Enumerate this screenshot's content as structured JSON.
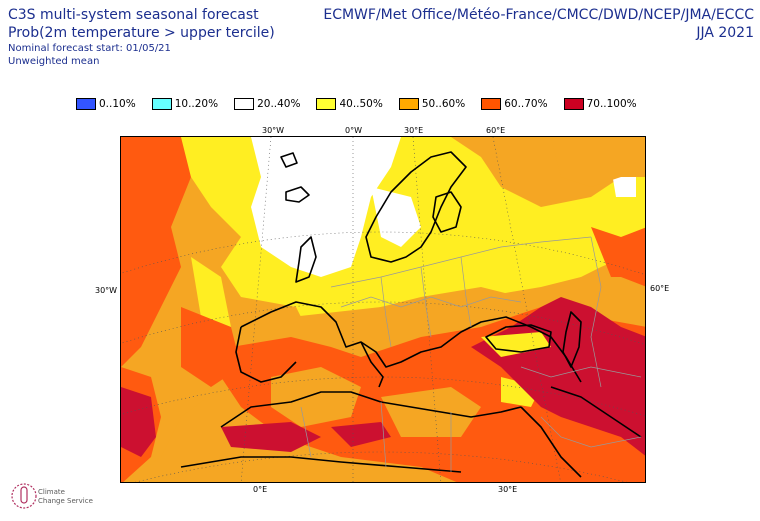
{
  "header": {
    "title": "C3S multi-system seasonal forecast",
    "subtitle": "Prob(2m temperature > upper tercile)",
    "start": "Nominal forecast start: 01/05/21",
    "mean": "Unweighted mean",
    "centres": "ECMWF/Met Office/Météo-France/CMCC/DWD/NCEP/JMA/ECCC",
    "season": "JJA 2021"
  },
  "legend": [
    {
      "label": "0..10%",
      "color": "#3355ff"
    },
    {
      "label": "10..20%",
      "color": "#66ffff"
    },
    {
      "label": "20..40%",
      "color": "#ffffff"
    },
    {
      "label": "40..50%",
      "color": "#ffff33"
    },
    {
      "label": "50..60%",
      "color": "#ffaa00"
    },
    {
      "label": "60..70%",
      "color": "#ff5500"
    },
    {
      "label": "70..100%",
      "color": "#cc0022"
    }
  ],
  "axes": {
    "top": [
      "30°W",
      "0°W",
      "30°E",
      "60°E"
    ],
    "left": "30°W",
    "right": "60°E",
    "bottom": [
      "0°E",
      "30°E"
    ]
  },
  "logo": {
    "line1": "Climate",
    "line2": "Change Service"
  }
}
